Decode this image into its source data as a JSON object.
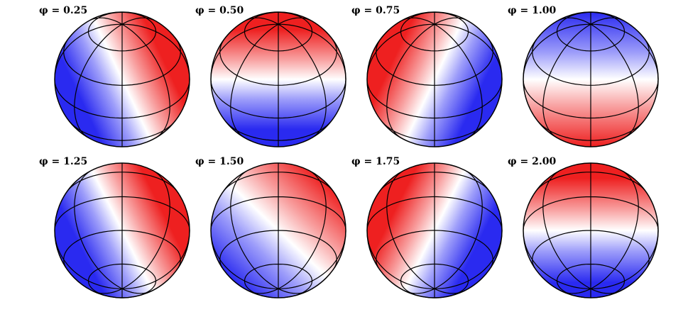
{
  "panels": [
    {
      "label": "φ = 0.25"
    },
    {
      "label": "φ = 0.50"
    },
    {
      "label": "φ = 0.75"
    },
    {
      "label": "φ = 1.00"
    },
    {
      "label": "φ = 1.25"
    },
    {
      "label": "φ = 1.50"
    },
    {
      "label": "φ = 1.75"
    },
    {
      "label": "φ = 2.00"
    }
  ]
}
